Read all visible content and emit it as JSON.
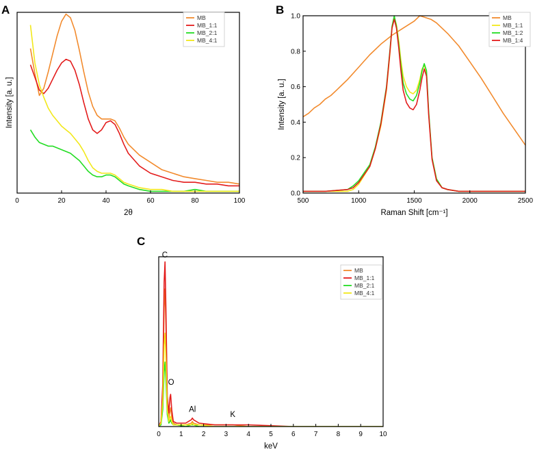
{
  "chart_data": [
    {
      "panel": "A",
      "type": "line",
      "xlabel": "2θ",
      "ylabel": "Intensity [a. u.]",
      "xlim": [
        0,
        100
      ],
      "ylim": [
        0,
        1
      ],
      "xticks": [
        0,
        20,
        40,
        60,
        80,
        100
      ],
      "yticks": [],
      "legend_position": "top-right",
      "series": [
        {
          "name": "MB",
          "color": "#f28a2c",
          "x": [
            6,
            8,
            10,
            12,
            14,
            16,
            18,
            20,
            22,
            24,
            26,
            28,
            30,
            32,
            34,
            36,
            38,
            40,
            42,
            44,
            46,
            48,
            50,
            55,
            60,
            65,
            70,
            75,
            80,
            85,
            90,
            95,
            100
          ],
          "y": [
            0.8,
            0.66,
            0.54,
            0.58,
            0.67,
            0.77,
            0.87,
            0.95,
            0.99,
            0.97,
            0.9,
            0.79,
            0.67,
            0.56,
            0.48,
            0.43,
            0.41,
            0.41,
            0.41,
            0.4,
            0.36,
            0.31,
            0.27,
            0.21,
            0.17,
            0.13,
            0.11,
            0.09,
            0.08,
            0.07,
            0.06,
            0.06,
            0.05
          ]
        },
        {
          "name": "MB_1:1",
          "color": "#e31b1b",
          "x": [
            6,
            8,
            10,
            12,
            14,
            16,
            18,
            20,
            22,
            24,
            26,
            28,
            30,
            32,
            34,
            36,
            38,
            40,
            42,
            44,
            46,
            48,
            50,
            55,
            60,
            65,
            70,
            75,
            80,
            85,
            90,
            95,
            100
          ],
          "y": [
            0.71,
            0.64,
            0.57,
            0.55,
            0.58,
            0.63,
            0.68,
            0.72,
            0.74,
            0.73,
            0.68,
            0.6,
            0.5,
            0.41,
            0.35,
            0.33,
            0.35,
            0.39,
            0.4,
            0.38,
            0.33,
            0.27,
            0.22,
            0.15,
            0.11,
            0.09,
            0.07,
            0.06,
            0.06,
            0.05,
            0.05,
            0.04,
            0.04
          ]
        },
        {
          "name": "MB_2:1",
          "color": "#22dd22",
          "x": [
            6,
            8,
            10,
            12,
            14,
            16,
            18,
            20,
            22,
            24,
            26,
            28,
            30,
            32,
            34,
            36,
            38,
            40,
            42,
            44,
            46,
            48,
            50,
            55,
            60,
            65,
            70,
            75,
            80,
            85,
            90,
            95,
            100
          ],
          "y": [
            0.35,
            0.31,
            0.28,
            0.27,
            0.26,
            0.26,
            0.25,
            0.24,
            0.23,
            0.22,
            0.2,
            0.18,
            0.15,
            0.12,
            0.1,
            0.09,
            0.09,
            0.1,
            0.1,
            0.09,
            0.07,
            0.05,
            0.04,
            0.02,
            0.01,
            0.01,
            0.01,
            0.01,
            0.02,
            0.01,
            0.01,
            0.01,
            0.01
          ]
        },
        {
          "name": "MB_4:1",
          "color": "#f2e81a",
          "x": [
            6,
            8,
            10,
            12,
            14,
            16,
            18,
            20,
            22,
            24,
            26,
            28,
            30,
            32,
            34,
            36,
            38,
            40,
            42,
            44,
            46,
            48,
            50,
            55,
            60,
            65,
            70,
            75,
            80,
            85,
            90,
            95,
            100
          ],
          "y": [
            0.93,
            0.72,
            0.6,
            0.53,
            0.47,
            0.43,
            0.4,
            0.37,
            0.35,
            0.33,
            0.3,
            0.27,
            0.23,
            0.18,
            0.14,
            0.12,
            0.11,
            0.11,
            0.11,
            0.1,
            0.08,
            0.06,
            0.05,
            0.03,
            0.02,
            0.02,
            0.01,
            0.01,
            0.01,
            0.01,
            0.01,
            0.01,
            0.01
          ]
        }
      ]
    },
    {
      "panel": "B",
      "type": "line",
      "xlabel": "Raman Shift [cm⁻¹]",
      "ylabel": "Intensity [a. u.]",
      "xlim": [
        500,
        2500
      ],
      "ylim": [
        0,
        1.0
      ],
      "xticks": [
        500,
        1000,
        1500,
        2000,
        2500
      ],
      "yticks": [
        0.0,
        0.2,
        0.4,
        0.6,
        0.8,
        1.0
      ],
      "ytick_labels": [
        "0.0",
        "0.2",
        "0.4",
        "0.6",
        "0.8",
        "1.0"
      ],
      "legend_position": "top-right",
      "series": [
        {
          "name": "MB",
          "color": "#f28a2c",
          "x": [
            500,
            550,
            600,
            650,
            700,
            750,
            800,
            850,
            900,
            1000,
            1100,
            1200,
            1300,
            1400,
            1500,
            1550,
            1600,
            1650,
            1700,
            1800,
            1900,
            2000,
            2100,
            2200,
            2300,
            2400,
            2500
          ],
          "y": [
            0.43,
            0.45,
            0.48,
            0.5,
            0.53,
            0.55,
            0.58,
            0.61,
            0.64,
            0.71,
            0.78,
            0.84,
            0.89,
            0.93,
            0.97,
            1.0,
            0.99,
            0.98,
            0.96,
            0.9,
            0.83,
            0.74,
            0.65,
            0.55,
            0.45,
            0.36,
            0.27
          ]
        },
        {
          "name": "MB_1:1",
          "color": "#f2e81a",
          "x": [
            500,
            700,
            900,
            950,
            1000,
            1100,
            1150,
            1200,
            1250,
            1280,
            1300,
            1320,
            1340,
            1360,
            1380,
            1400,
            1430,
            1460,
            1490,
            1520,
            1550,
            1570,
            1590,
            1610,
            1630,
            1660,
            1700,
            1750,
            1800,
            1900,
            2000,
            2200,
            2500
          ],
          "y": [
            0.01,
            0.01,
            0.01,
            0.02,
            0.05,
            0.15,
            0.25,
            0.38,
            0.58,
            0.78,
            0.93,
            0.99,
            0.95,
            0.86,
            0.75,
            0.66,
            0.6,
            0.57,
            0.56,
            0.58,
            0.64,
            0.7,
            0.72,
            0.68,
            0.45,
            0.2,
            0.08,
            0.03,
            0.02,
            0.01,
            0.01,
            0.01,
            0.01
          ]
        },
        {
          "name": "MB_1:2",
          "color": "#22dd22",
          "x": [
            500,
            700,
            900,
            950,
            1000,
            1100,
            1150,
            1200,
            1250,
            1280,
            1300,
            1320,
            1340,
            1360,
            1380,
            1400,
            1430,
            1460,
            1490,
            1520,
            1550,
            1570,
            1590,
            1610,
            1630,
            1660,
            1700,
            1750,
            1800,
            1900,
            2000,
            2200,
            2500
          ],
          "y": [
            0.01,
            0.01,
            0.02,
            0.04,
            0.07,
            0.16,
            0.26,
            0.4,
            0.6,
            0.8,
            0.94,
            1.0,
            0.94,
            0.84,
            0.72,
            0.62,
            0.56,
            0.53,
            0.52,
            0.55,
            0.62,
            0.69,
            0.73,
            0.69,
            0.46,
            0.2,
            0.08,
            0.03,
            0.02,
            0.01,
            0.01,
            0.01,
            0.01
          ]
        },
        {
          "name": "MB_1:4",
          "color": "#e31b1b",
          "x": [
            500,
            700,
            900,
            950,
            1000,
            1100,
            1150,
            1200,
            1250,
            1280,
            1300,
            1320,
            1340,
            1360,
            1380,
            1400,
            1430,
            1460,
            1490,
            1520,
            1550,
            1570,
            1590,
            1610,
            1630,
            1660,
            1700,
            1750,
            1800,
            1900,
            2000,
            2200,
            2500
          ],
          "y": [
            0.01,
            0.01,
            0.02,
            0.03,
            0.06,
            0.15,
            0.25,
            0.39,
            0.59,
            0.79,
            0.93,
            0.98,
            0.93,
            0.82,
            0.69,
            0.58,
            0.51,
            0.48,
            0.47,
            0.5,
            0.58,
            0.65,
            0.7,
            0.66,
            0.44,
            0.19,
            0.07,
            0.03,
            0.02,
            0.01,
            0.01,
            0.01,
            0.01
          ]
        }
      ]
    },
    {
      "panel": "C",
      "type": "line",
      "xlabel": "keV",
      "ylabel": "",
      "xlim": [
        0,
        10
      ],
      "ylim": [
        0,
        1
      ],
      "xticks": [
        0,
        1,
        2,
        3,
        4,
        5,
        6,
        7,
        8,
        9,
        10
      ],
      "yticks": [],
      "legend_position": "top-right",
      "annotations": [
        {
          "text": "C",
          "x": 0.27,
          "y": 0.98
        },
        {
          "text": "O",
          "x": 0.55,
          "y": 0.23
        },
        {
          "text": "Al",
          "x": 1.5,
          "y": 0.07
        },
        {
          "text": "K",
          "x": 3.3,
          "y": 0.04
        }
      ],
      "series": [
        {
          "name": "MB",
          "color": "#f28a2c",
          "x": [
            0,
            0.1,
            0.18,
            0.24,
            0.28,
            0.32,
            0.38,
            0.45,
            0.5,
            0.53,
            0.58,
            0.65,
            0.8,
            1.2,
            1.45,
            1.5,
            1.55,
            1.8,
            2.5,
            3.3,
            4,
            6,
            8,
            10
          ],
          "y": [
            0,
            0.02,
            0.2,
            0.7,
            0.81,
            0.6,
            0.15,
            0.05,
            0.09,
            0.11,
            0.06,
            0.02,
            0.01,
            0.01,
            0.02,
            0.03,
            0.02,
            0.01,
            0.01,
            0.01,
            0.0,
            0.0,
            0.0,
            0.0
          ]
        },
        {
          "name": "MB_1:1",
          "color": "#e31b1b",
          "x": [
            0,
            0.1,
            0.18,
            0.24,
            0.28,
            0.32,
            0.38,
            0.45,
            0.5,
            0.53,
            0.58,
            0.65,
            0.8,
            1.2,
            1.45,
            1.5,
            1.55,
            1.8,
            2.5,
            3.3,
            4,
            6,
            8,
            10
          ],
          "y": [
            0,
            0.03,
            0.25,
            0.85,
            0.97,
            0.7,
            0.18,
            0.08,
            0.17,
            0.19,
            0.1,
            0.03,
            0.02,
            0.02,
            0.04,
            0.05,
            0.04,
            0.02,
            0.01,
            0.01,
            0.01,
            0.0,
            0.0,
            0.0
          ]
        },
        {
          "name": "MB_2:1",
          "color": "#22dd22",
          "x": [
            0,
            0.1,
            0.18,
            0.24,
            0.28,
            0.32,
            0.38,
            0.45,
            0.5,
            0.53,
            0.58,
            0.65,
            0.8,
            1.2,
            1.45,
            1.5,
            1.55,
            1.8,
            2.5,
            3.3,
            4,
            6,
            8,
            10
          ],
          "y": [
            0,
            0.01,
            0.1,
            0.32,
            0.38,
            0.28,
            0.07,
            0.02,
            0.03,
            0.04,
            0.02,
            0.01,
            0.01,
            0.0,
            0.01,
            0.01,
            0.01,
            0.0,
            0.0,
            0.0,
            0.0,
            0.0,
            0.0,
            0.0
          ]
        },
        {
          "name": "MB_4:1",
          "color": "#f2e81a",
          "x": [
            0,
            0.1,
            0.18,
            0.24,
            0.28,
            0.32,
            0.38,
            0.45,
            0.5,
            0.53,
            0.58,
            0.65,
            0.8,
            1.2,
            1.45,
            1.5,
            1.55,
            1.8,
            2.5,
            3.3,
            4,
            6,
            8,
            10
          ],
          "y": [
            0,
            0.02,
            0.15,
            0.48,
            0.55,
            0.4,
            0.1,
            0.03,
            0.05,
            0.06,
            0.03,
            0.01,
            0.01,
            0.01,
            0.01,
            0.02,
            0.01,
            0.01,
            0.0,
            0.0,
            0.0,
            0.0,
            0.0,
            0.0
          ]
        }
      ]
    }
  ]
}
